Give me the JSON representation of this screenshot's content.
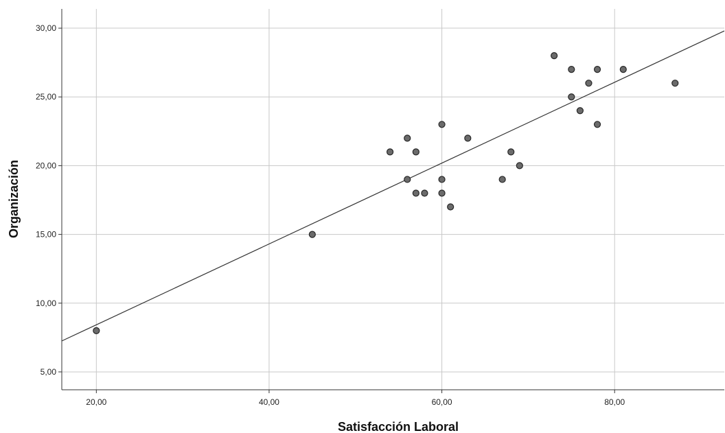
{
  "chart_data": {
    "type": "scatter",
    "title": "",
    "xlabel": "Satisfacción Laboral",
    "ylabel": "Organización",
    "xlim": [
      16,
      92.7
    ],
    "ylim": [
      3.7,
      31.4
    ],
    "x_ticks": [
      20,
      40,
      60,
      80
    ],
    "y_ticks": [
      5,
      10,
      15,
      20,
      25,
      30
    ],
    "x_tick_labels": [
      "20,00",
      "40,00",
      "60,00",
      "80,00"
    ],
    "y_tick_labels": [
      "5,00",
      "10,00",
      "15,00",
      "20,00",
      "25,00",
      "30,00"
    ],
    "grid": true,
    "colors": {
      "point_fill": "#6b6b6b",
      "point_stroke": "#262626",
      "grid": "#c8c8c8",
      "fit_line": "#333333"
    },
    "points": [
      {
        "x": 20,
        "y": 8
      },
      {
        "x": 45,
        "y": 15
      },
      {
        "x": 54,
        "y": 21
      },
      {
        "x": 56,
        "y": 22
      },
      {
        "x": 56,
        "y": 19
      },
      {
        "x": 57,
        "y": 21
      },
      {
        "x": 57,
        "y": 18
      },
      {
        "x": 58,
        "y": 18
      },
      {
        "x": 60,
        "y": 23
      },
      {
        "x": 60,
        "y": 19
      },
      {
        "x": 60,
        "y": 18
      },
      {
        "x": 61,
        "y": 17
      },
      {
        "x": 63,
        "y": 22
      },
      {
        "x": 67,
        "y": 19
      },
      {
        "x": 68,
        "y": 21
      },
      {
        "x": 69,
        "y": 20
      },
      {
        "x": 73,
        "y": 28
      },
      {
        "x": 75,
        "y": 27
      },
      {
        "x": 75,
        "y": 25
      },
      {
        "x": 76,
        "y": 24
      },
      {
        "x": 77,
        "y": 26
      },
      {
        "x": 78,
        "y": 27
      },
      {
        "x": 78,
        "y": 23
      },
      {
        "x": 81,
        "y": 27
      },
      {
        "x": 87,
        "y": 26
      }
    ],
    "fit_line": {
      "x": [
        16,
        92.7
      ],
      "y": [
        7.25,
        29.8
      ]
    }
  }
}
